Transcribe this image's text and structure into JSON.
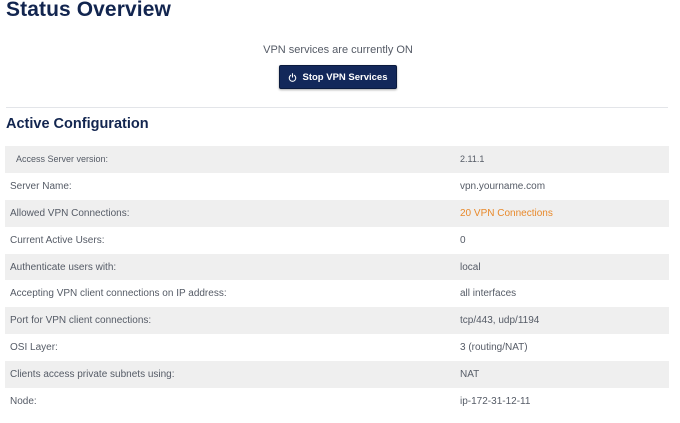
{
  "page": {
    "title": "Status Overview"
  },
  "vpn": {
    "status_text": "VPN services are currently ON",
    "stop_button_label": "Stop VPN Services",
    "stop_button_icon": "power-icon"
  },
  "config": {
    "section_title": "Active Configuration",
    "accent_color": "#e8892b",
    "rows": [
      {
        "label": "Access Server version:",
        "value": "2.11.1"
      },
      {
        "label": "Server Name:",
        "value": "vpn.yourname.com"
      },
      {
        "label": "Allowed VPN Connections:",
        "value": "20 VPN Connections"
      },
      {
        "label": "Current Active Users:",
        "value": "0"
      },
      {
        "label": "Authenticate users with:",
        "value": "local"
      },
      {
        "label": "Accepting VPN client connections on IP address:",
        "value": "all interfaces"
      },
      {
        "label": "Port for VPN client connections:",
        "value": "tcp/443, udp/1194"
      },
      {
        "label": "OSI Layer:",
        "value": "3 (routing/NAT)"
      },
      {
        "label": "Clients access private subnets using:",
        "value": "NAT"
      },
      {
        "label": "Node:",
        "value": "ip-172-31-12-11"
      }
    ]
  }
}
